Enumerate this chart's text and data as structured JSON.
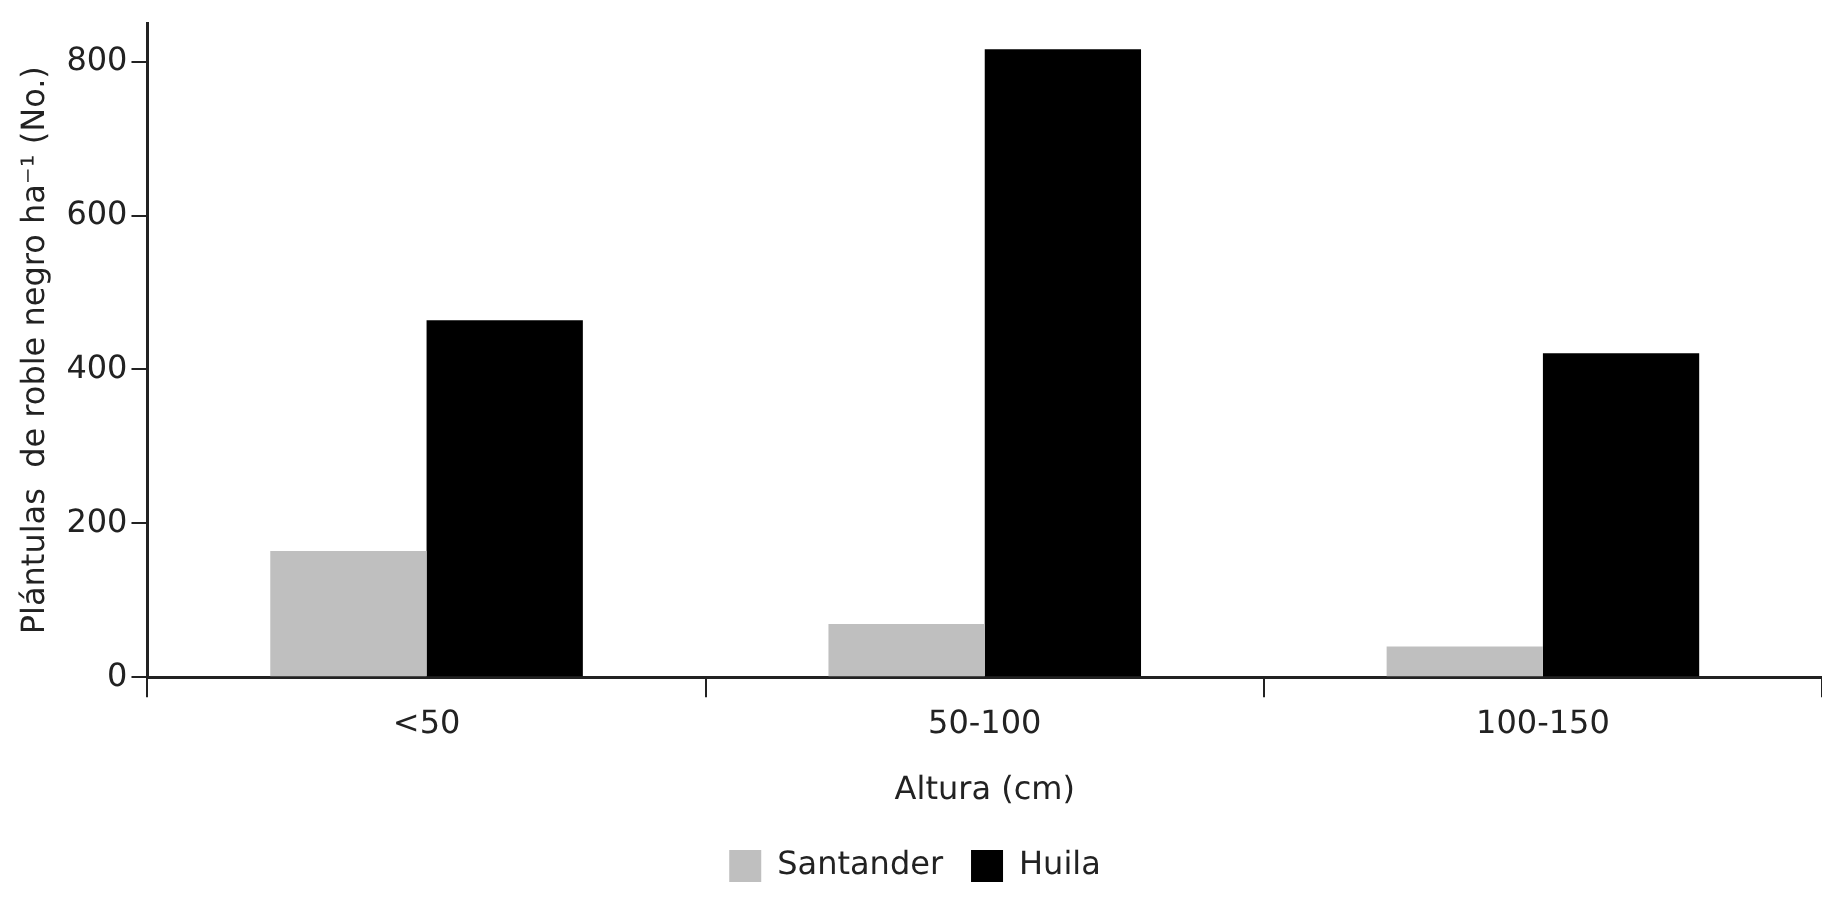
{
  "chart_data": {
    "type": "bar",
    "xlabel": "Altura (cm)",
    "ylabel": "Plántulas  de roble negro ha⁻¹ (No.)",
    "categories": [
      "<50",
      "50-100",
      "100-150"
    ],
    "series": [
      {
        "name": "Santander",
        "color": "#bfbfbf",
        "values": [
          164,
          69,
          40
        ]
      },
      {
        "name": "Huila",
        "color": "#000000",
        "values": [
          464,
          816,
          421
        ]
      }
    ],
    "ylim": [
      0,
      850
    ],
    "yticks": [
      0,
      200,
      400,
      600,
      800
    ],
    "grid": false,
    "legend": "bottom"
  }
}
